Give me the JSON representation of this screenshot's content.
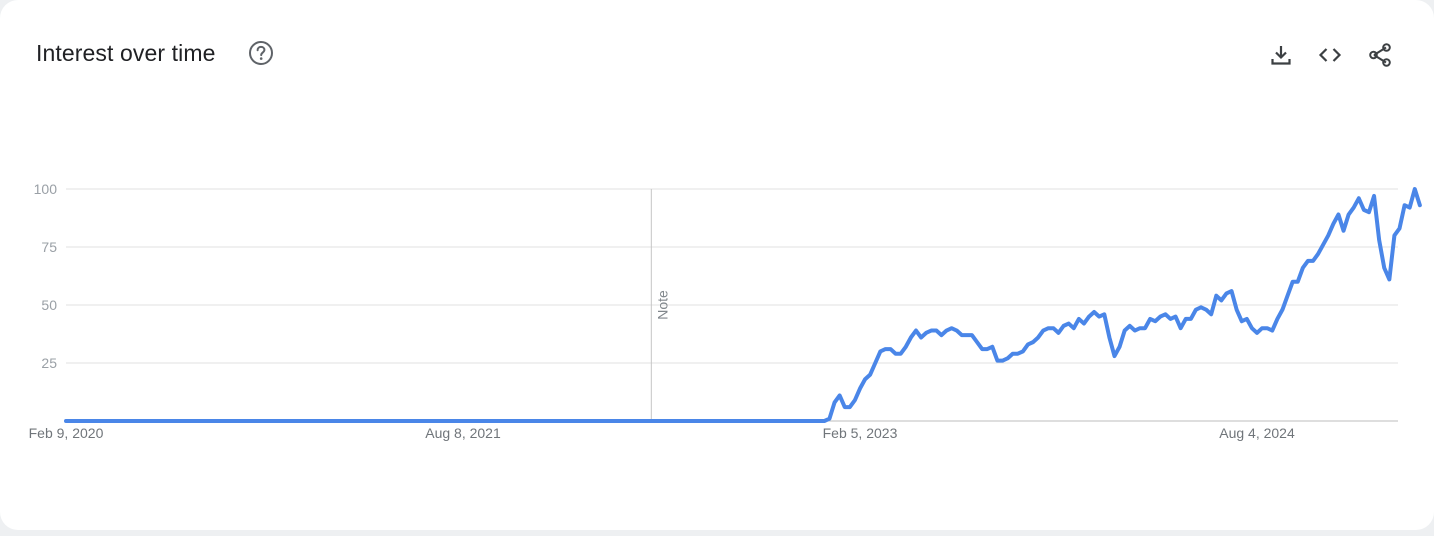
{
  "header": {
    "title": "Interest over time",
    "help_icon": "help-circle-icon",
    "toolbar_icons": [
      "download-icon",
      "embed-code-icon",
      "share-icon"
    ]
  },
  "colors": {
    "series": "#4a86e8",
    "grid": "#e0e0e0",
    "axis": "#bdbdbd",
    "text_title": "#202124",
    "text_muted": "#9aa0a6"
  },
  "annotation": {
    "label": "Note",
    "date": "2022-04-24"
  },
  "chart_data": {
    "type": "line",
    "title": "Interest over time",
    "xlabel": "",
    "ylabel": "",
    "ylim": [
      0,
      100
    ],
    "yticks": [
      25,
      50,
      75,
      100
    ],
    "xticks": [
      {
        "label": "Feb 9, 2020",
        "date": "2020-02-09"
      },
      {
        "label": "Aug 8, 2021",
        "date": "2021-08-08"
      },
      {
        "label": "Feb 5, 2023",
        "date": "2023-02-05"
      },
      {
        "label": "Aug 4, 2024",
        "date": "2024-08-04"
      }
    ],
    "xrange": [
      "2020-02-09",
      "2025-01-26"
    ],
    "grid": true,
    "legend": "none",
    "series": [
      {
        "points": [
          [
            "2020-02-09",
            0
          ],
          [
            "2022-12-18",
            0
          ],
          [
            "2022-12-25",
            1
          ],
          [
            "2023-01-01",
            8
          ],
          [
            "2023-01-08",
            11
          ],
          [
            "2023-01-15",
            6
          ],
          [
            "2023-01-22",
            6
          ],
          [
            "2023-01-29",
            9
          ],
          [
            "2023-02-05",
            14
          ],
          [
            "2023-02-12",
            18
          ],
          [
            "2023-02-19",
            20
          ],
          [
            "2023-02-26",
            25
          ],
          [
            "2023-03-05",
            30
          ],
          [
            "2023-03-12",
            31
          ],
          [
            "2023-03-19",
            31
          ],
          [
            "2023-03-26",
            29
          ],
          [
            "2023-04-02",
            29
          ],
          [
            "2023-04-09",
            32
          ],
          [
            "2023-04-16",
            36
          ],
          [
            "2023-04-23",
            39
          ],
          [
            "2023-04-30",
            36
          ],
          [
            "2023-05-07",
            38
          ],
          [
            "2023-05-14",
            39
          ],
          [
            "2023-05-21",
            39
          ],
          [
            "2023-05-28",
            37
          ],
          [
            "2023-06-04",
            39
          ],
          [
            "2023-06-11",
            40
          ],
          [
            "2023-06-18",
            39
          ],
          [
            "2023-06-25",
            37
          ],
          [
            "2023-07-02",
            37
          ],
          [
            "2023-07-09",
            37
          ],
          [
            "2023-07-16",
            34
          ],
          [
            "2023-07-23",
            31
          ],
          [
            "2023-07-30",
            31
          ],
          [
            "2023-08-06",
            32
          ],
          [
            "2023-08-13",
            26
          ],
          [
            "2023-08-20",
            26
          ],
          [
            "2023-08-27",
            27
          ],
          [
            "2023-09-03",
            29
          ],
          [
            "2023-09-10",
            29
          ],
          [
            "2023-09-17",
            30
          ],
          [
            "2023-09-24",
            33
          ],
          [
            "2023-10-01",
            34
          ],
          [
            "2023-10-08",
            36
          ],
          [
            "2023-10-15",
            39
          ],
          [
            "2023-10-22",
            40
          ],
          [
            "2023-10-29",
            40
          ],
          [
            "2023-11-05",
            38
          ],
          [
            "2023-11-12",
            41
          ],
          [
            "2023-11-19",
            42
          ],
          [
            "2023-11-26",
            40
          ],
          [
            "2023-12-03",
            44
          ],
          [
            "2023-12-10",
            42
          ],
          [
            "2023-12-17",
            45
          ],
          [
            "2023-12-24",
            47
          ],
          [
            "2023-12-31",
            45
          ],
          [
            "2024-01-07",
            46
          ],
          [
            "2024-01-14",
            36
          ],
          [
            "2024-01-21",
            28
          ],
          [
            "2024-01-28",
            32
          ],
          [
            "2024-02-04",
            39
          ],
          [
            "2024-02-11",
            41
          ],
          [
            "2024-02-18",
            39
          ],
          [
            "2024-02-25",
            40
          ],
          [
            "2024-03-03",
            40
          ],
          [
            "2024-03-10",
            44
          ],
          [
            "2024-03-17",
            43
          ],
          [
            "2024-03-24",
            45
          ],
          [
            "2024-03-31",
            46
          ],
          [
            "2024-04-07",
            44
          ],
          [
            "2024-04-14",
            45
          ],
          [
            "2024-04-21",
            40
          ],
          [
            "2024-04-28",
            44
          ],
          [
            "2024-05-05",
            44
          ],
          [
            "2024-05-12",
            48
          ],
          [
            "2024-05-19",
            49
          ],
          [
            "2024-05-26",
            48
          ],
          [
            "2024-06-02",
            46
          ],
          [
            "2024-06-09",
            54
          ],
          [
            "2024-06-16",
            52
          ],
          [
            "2024-06-23",
            55
          ],
          [
            "2024-06-30",
            56
          ],
          [
            "2024-07-07",
            48
          ],
          [
            "2024-07-14",
            43
          ],
          [
            "2024-07-21",
            44
          ],
          [
            "2024-07-28",
            40
          ],
          [
            "2024-08-04",
            38
          ],
          [
            "2024-08-11",
            40
          ],
          [
            "2024-08-18",
            40
          ],
          [
            "2024-08-25",
            39
          ],
          [
            "2024-09-01",
            44
          ],
          [
            "2024-09-08",
            48
          ],
          [
            "2024-09-15",
            54
          ],
          [
            "2024-09-22",
            60
          ],
          [
            "2024-09-29",
            60
          ],
          [
            "2024-10-06",
            66
          ],
          [
            "2024-10-13",
            69
          ],
          [
            "2024-10-20",
            69
          ],
          [
            "2024-10-27",
            72
          ],
          [
            "2024-11-03",
            76
          ],
          [
            "2024-11-10",
            80
          ],
          [
            "2024-11-17",
            85
          ],
          [
            "2024-11-24",
            89
          ],
          [
            "2024-12-01",
            82
          ],
          [
            "2024-12-08",
            89
          ],
          [
            "2024-12-15",
            92
          ],
          [
            "2024-12-22",
            96
          ],
          [
            "2024-12-29",
            91
          ],
          [
            "2025-01-05",
            90
          ],
          [
            "2025-01-12",
            97
          ],
          [
            "2025-01-19",
            78
          ],
          [
            "2025-01-26",
            66
          ],
          [
            "2025-02-02",
            61
          ],
          [
            "2025-02-09",
            80
          ],
          [
            "2025-02-16",
            83
          ],
          [
            "2025-02-23",
            93
          ],
          [
            "2025-03-02",
            92
          ],
          [
            "2025-03-09",
            100
          ],
          [
            "2025-03-16",
            93
          ]
        ]
      }
    ]
  }
}
